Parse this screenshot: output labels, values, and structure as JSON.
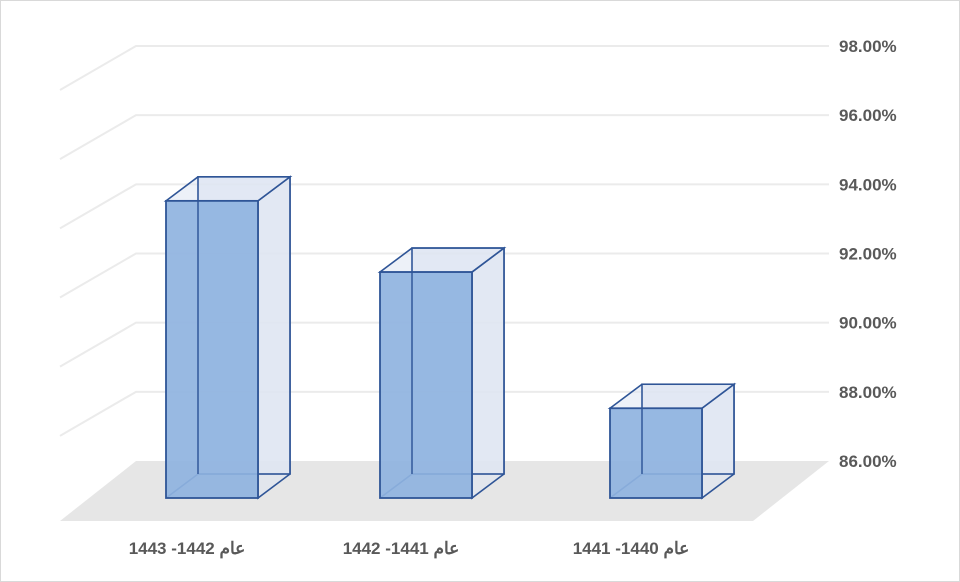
{
  "chart_data": {
    "type": "bar",
    "categories": [
      "عام 1442- 1443",
      "عام 1441- 1442",
      "عام 1440- 1441"
    ],
    "values": [
      95.6,
      93.3,
      88.9
    ],
    "ylim": [
      86,
      98
    ],
    "yticks": [
      "98.00%",
      "96.00%",
      "94.00%",
      "92.00%",
      "90.00%",
      "88.00%",
      "86.00%"
    ],
    "title": "",
    "xlabel": "",
    "ylabel": "",
    "grid": true,
    "bar_style": "3d-column",
    "colors": {
      "bar_front": "#8fb3e0",
      "bar_outline": "#2f5597",
      "bar_glass": "#dfe6f2",
      "gridline": "#ebebeb",
      "floor": "#e6e6e6",
      "tick_text": "#595959"
    }
  }
}
